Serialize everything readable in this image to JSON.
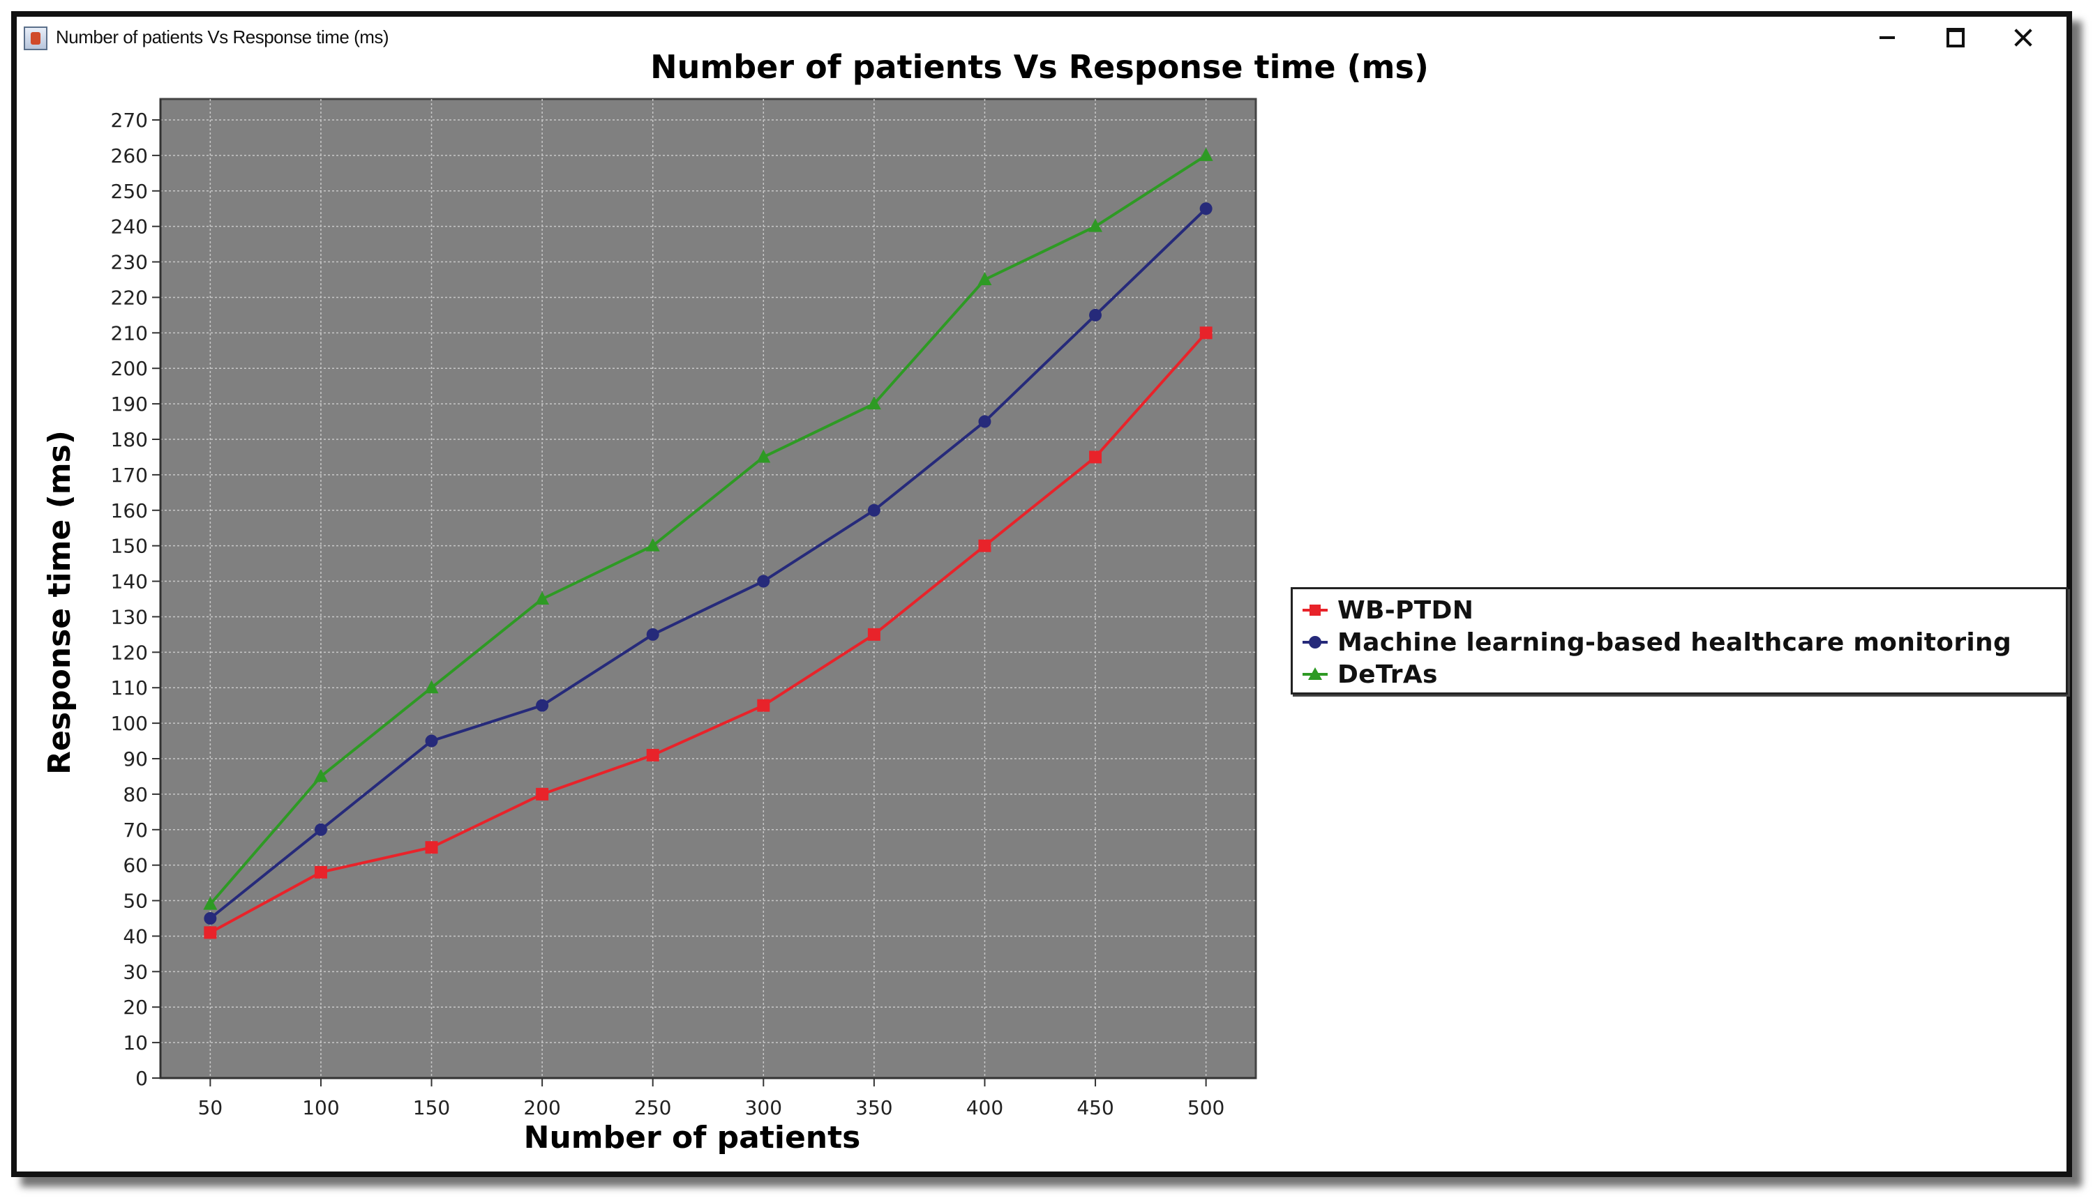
{
  "window": {
    "title": "Number of patients Vs Response time (ms)"
  },
  "chart_data": {
    "type": "line",
    "title": "Number of patients Vs Response time (ms)",
    "xlabel": "Number of patients",
    "ylabel": "Response time (ms)",
    "categories": [
      "50",
      "100",
      "150",
      "200",
      "250",
      "300",
      "350",
      "400",
      "450",
      "500"
    ],
    "x": [
      50,
      100,
      150,
      200,
      250,
      300,
      350,
      400,
      450,
      500
    ],
    "ylim": [
      0,
      270
    ],
    "yticks": [
      0,
      10,
      20,
      30,
      40,
      50,
      60,
      70,
      80,
      90,
      100,
      110,
      120,
      130,
      140,
      150,
      160,
      170,
      180,
      190,
      200,
      210,
      220,
      230,
      240,
      250,
      260,
      270
    ],
    "grid": true,
    "legend_position": "right",
    "plot_background": "#808080",
    "series": [
      {
        "name": "WB-PTDN",
        "color": "#e8232a",
        "marker": "square",
        "values": [
          41,
          58,
          65,
          80,
          91,
          105,
          125,
          150,
          175,
          210
        ]
      },
      {
        "name": "Machine learning-based healthcare monitoring",
        "color": "#262a7a",
        "marker": "circle",
        "values": [
          45,
          70,
          95,
          105,
          125,
          140,
          160,
          185,
          215,
          245
        ]
      },
      {
        "name": "DeTrAs",
        "color": "#2e9a24",
        "marker": "triangle",
        "values": [
          49,
          85,
          110,
          135,
          150,
          175,
          190,
          225,
          240,
          260
        ]
      }
    ]
  }
}
